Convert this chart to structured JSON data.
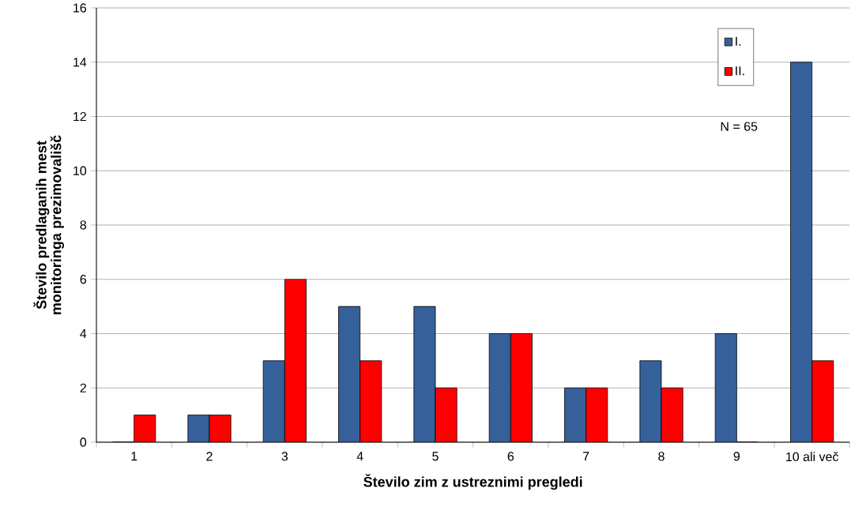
{
  "chart_data": {
    "type": "bar",
    "xlabel": "Število zim z ustreznimi pregledi",
    "ylabel": "Število predlaganih mest monitoringa prezimovališč",
    "categories": [
      "1",
      "2",
      "3",
      "4",
      "5",
      "6",
      "7",
      "8",
      "9",
      "10 ali več"
    ],
    "series": [
      {
        "name": "I.",
        "color": "#36609a",
        "values": [
          0,
          1,
          3,
          5,
          5,
          4,
          2,
          3,
          4,
          14
        ]
      },
      {
        "name": "II.",
        "color": "#ff0000",
        "values": [
          1,
          1,
          6,
          3,
          2,
          4,
          2,
          2,
          0,
          3
        ]
      }
    ],
    "ylim": [
      0,
      16
    ],
    "yticks": [
      0,
      2,
      4,
      6,
      8,
      10,
      12,
      14,
      16
    ],
    "grid": "y",
    "legend": "top right",
    "annotations": [
      "N = 65"
    ]
  }
}
